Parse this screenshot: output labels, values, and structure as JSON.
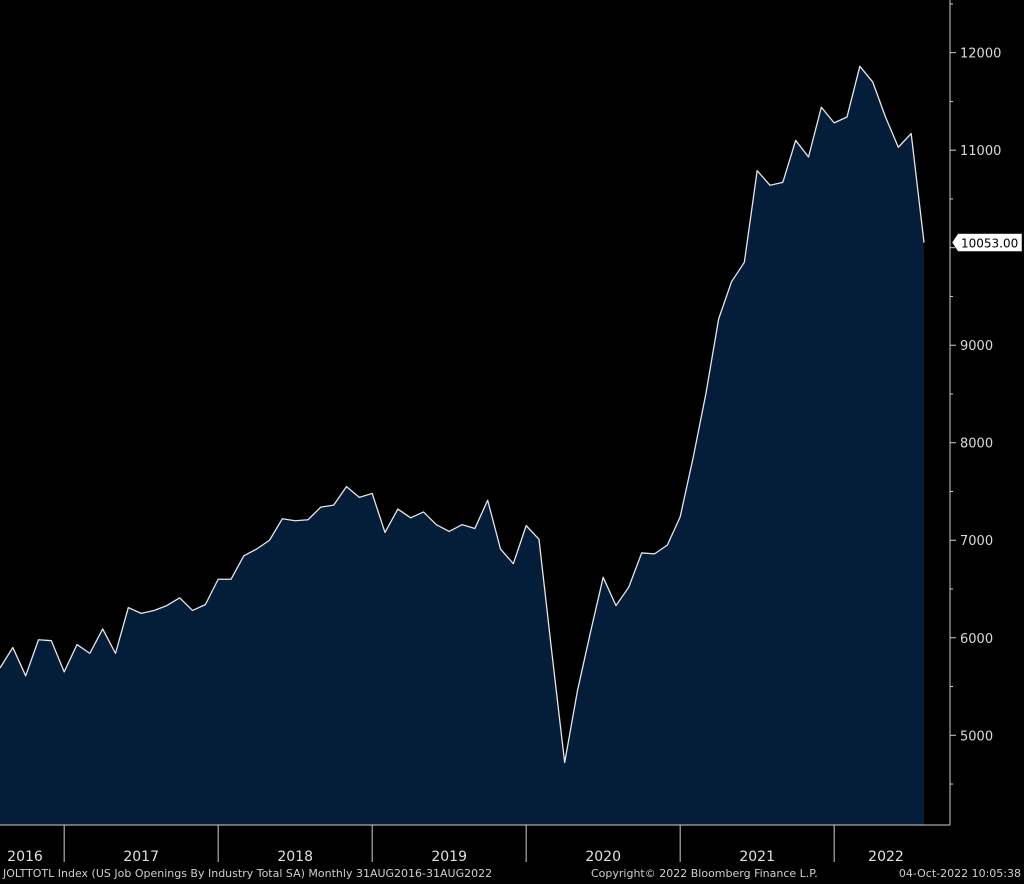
{
  "chart_data": {
    "type": "area",
    "fill_color": "#041e3a",
    "line_color": "#e6e6e6",
    "background": "#000000",
    "x_start": "2016-08",
    "x_end": "2022-08",
    "x_tick_labels": [
      "2016",
      "2017",
      "2018",
      "2019",
      "2020",
      "2021",
      "2022"
    ],
    "y_ticks": [
      5000,
      6000,
      7000,
      8000,
      9000,
      10000,
      11000,
      12000
    ],
    "y_tick_labels": [
      "5000",
      "6000",
      "7000",
      "8000",
      "9000",
      "10000",
      "11000",
      "12000"
    ],
    "y_range": [
      4080,
      12540
    ],
    "y_axis_side": "right",
    "last_value_label": "10053.00",
    "values": [
      5690,
      5900,
      5610,
      5980,
      5970,
      5650,
      5930,
      5840,
      6090,
      5840,
      6310,
      6250,
      6280,
      6330,
      6410,
      6280,
      6340,
      6600,
      6600,
      6840,
      6910,
      7000,
      7220,
      7200,
      7210,
      7340,
      7360,
      7550,
      7440,
      7480,
      7080,
      7320,
      7230,
      7290,
      7160,
      7090,
      7160,
      7120,
      7410,
      6910,
      6760,
      7150,
      7010,
      5850,
      4720,
      5460,
      6050,
      6620,
      6330,
      6520,
      6870,
      6860,
      6950,
      7240,
      7840,
      8500,
      9270,
      9650,
      9850,
      10790,
      10640,
      10670,
      11100,
      10930,
      11440,
      11280,
      11340,
      11860,
      11700,
      11340,
      11030,
      11170,
      10053
    ]
  },
  "footer": {
    "left": "JOLTTOTL Index (US Job Openings By Industry Total SA)  Monthly 31AUG2016-31AUG2022",
    "middle": "Copyright© 2022 Bloomberg Finance L.P.",
    "right": "04-Oct-2022 10:05:38"
  }
}
